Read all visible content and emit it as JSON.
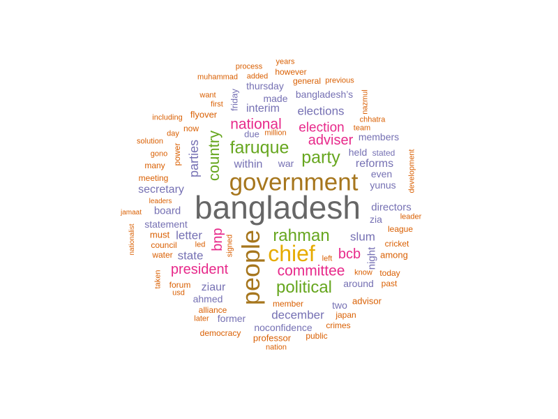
{
  "palette": {
    "gray": "#666666",
    "olive": "#a6761d",
    "gold": "#e6ab02",
    "green": "#66a61e",
    "magenta": "#e7298a",
    "purple": "#7570b3",
    "orange": "#d95f02"
  },
  "words": [
    {
      "text": "bangladesh",
      "color": "gray"
    },
    {
      "text": "government",
      "color": "olive"
    },
    {
      "text": "people",
      "color": "olive"
    },
    {
      "text": "chief",
      "color": "gold"
    },
    {
      "text": "faruque",
      "color": "green"
    },
    {
      "text": "party",
      "color": "green"
    },
    {
      "text": "rahman",
      "color": "green"
    },
    {
      "text": "political",
      "color": "green"
    },
    {
      "text": "country",
      "color": "green"
    },
    {
      "text": "national",
      "color": "magenta"
    },
    {
      "text": "election",
      "color": "magenta"
    },
    {
      "text": "adviser",
      "color": "magenta"
    },
    {
      "text": "committee",
      "color": "magenta"
    },
    {
      "text": "president",
      "color": "magenta"
    },
    {
      "text": "bcb",
      "color": "magenta"
    },
    {
      "text": "bnp",
      "color": "magenta"
    },
    {
      "text": "elections",
      "color": "purple"
    },
    {
      "text": "interim",
      "color": "purple"
    },
    {
      "text": "within",
      "color": "purple"
    },
    {
      "text": "parties",
      "color": "purple"
    },
    {
      "text": "reforms",
      "color": "purple"
    },
    {
      "text": "secretary",
      "color": "purple"
    },
    {
      "text": "directors",
      "color": "purple"
    },
    {
      "text": "slum",
      "color": "purple"
    },
    {
      "text": "letter",
      "color": "purple"
    },
    {
      "text": "state",
      "color": "purple"
    },
    {
      "text": "december",
      "color": "purple"
    },
    {
      "text": "ziaur",
      "color": "purple"
    },
    {
      "text": "thursday",
      "color": "purple"
    },
    {
      "text": "made",
      "color": "purple"
    },
    {
      "text": "bangladesh’s",
      "color": "purple"
    },
    {
      "text": "held",
      "color": "purple"
    },
    {
      "text": "members",
      "color": "purple"
    },
    {
      "text": "even",
      "color": "purple"
    },
    {
      "text": "yunus",
      "color": "purple"
    },
    {
      "text": "board",
      "color": "purple"
    },
    {
      "text": "statement",
      "color": "purple"
    },
    {
      "text": "zia",
      "color": "purple"
    },
    {
      "text": "night",
      "color": "purple"
    },
    {
      "text": "around",
      "color": "purple"
    },
    {
      "text": "ahmed",
      "color": "purple"
    },
    {
      "text": "former",
      "color": "purple"
    },
    {
      "text": "noconfidence",
      "color": "purple"
    },
    {
      "text": "two",
      "color": "purple"
    },
    {
      "text": "war",
      "color": "purple"
    },
    {
      "text": "due",
      "color": "purple"
    },
    {
      "text": "stated",
      "color": "purple"
    },
    {
      "text": "friday",
      "color": "purple"
    },
    {
      "text": "process",
      "color": "orange"
    },
    {
      "text": "years",
      "color": "orange"
    },
    {
      "text": "muhammad",
      "color": "orange"
    },
    {
      "text": "added",
      "color": "orange"
    },
    {
      "text": "however",
      "color": "orange"
    },
    {
      "text": "previous",
      "color": "orange"
    },
    {
      "text": "general",
      "color": "orange"
    },
    {
      "text": "want",
      "color": "orange"
    },
    {
      "text": "first",
      "color": "orange"
    },
    {
      "text": "nazmul",
      "color": "orange"
    },
    {
      "text": "including",
      "color": "orange"
    },
    {
      "text": "flyover",
      "color": "orange"
    },
    {
      "text": "now",
      "color": "orange"
    },
    {
      "text": "million",
      "color": "orange"
    },
    {
      "text": "chhatra",
      "color": "orange"
    },
    {
      "text": "team",
      "color": "orange"
    },
    {
      "text": "day",
      "color": "orange"
    },
    {
      "text": "solution",
      "color": "orange"
    },
    {
      "text": "gono",
      "color": "orange"
    },
    {
      "text": "power",
      "color": "orange"
    },
    {
      "text": "many",
      "color": "orange"
    },
    {
      "text": "meeting",
      "color": "orange"
    },
    {
      "text": "development",
      "color": "orange"
    },
    {
      "text": "leaders",
      "color": "orange"
    },
    {
      "text": "jamaat",
      "color": "orange"
    },
    {
      "text": "leader",
      "color": "orange"
    },
    {
      "text": "league",
      "color": "orange"
    },
    {
      "text": "nationalist",
      "color": "orange"
    },
    {
      "text": "must",
      "color": "orange"
    },
    {
      "text": "council",
      "color": "orange"
    },
    {
      "text": "led",
      "color": "orange"
    },
    {
      "text": "signed",
      "color": "orange"
    },
    {
      "text": "cricket",
      "color": "orange"
    },
    {
      "text": "water",
      "color": "orange"
    },
    {
      "text": "among",
      "color": "orange"
    },
    {
      "text": "left",
      "color": "orange"
    },
    {
      "text": "know",
      "color": "orange"
    },
    {
      "text": "today",
      "color": "orange"
    },
    {
      "text": "taken",
      "color": "orange"
    },
    {
      "text": "forum",
      "color": "orange"
    },
    {
      "text": "past",
      "color": "orange"
    },
    {
      "text": "usd",
      "color": "orange"
    },
    {
      "text": "advisor",
      "color": "orange"
    },
    {
      "text": "member",
      "color": "orange"
    },
    {
      "text": "alliance",
      "color": "orange"
    },
    {
      "text": "japan",
      "color": "orange"
    },
    {
      "text": "later",
      "color": "orange"
    },
    {
      "text": "crimes",
      "color": "orange"
    },
    {
      "text": "democracy",
      "color": "orange"
    },
    {
      "text": "professor",
      "color": "orange"
    },
    {
      "text": "public",
      "color": "orange"
    },
    {
      "text": "nation",
      "color": "orange"
    }
  ]
}
